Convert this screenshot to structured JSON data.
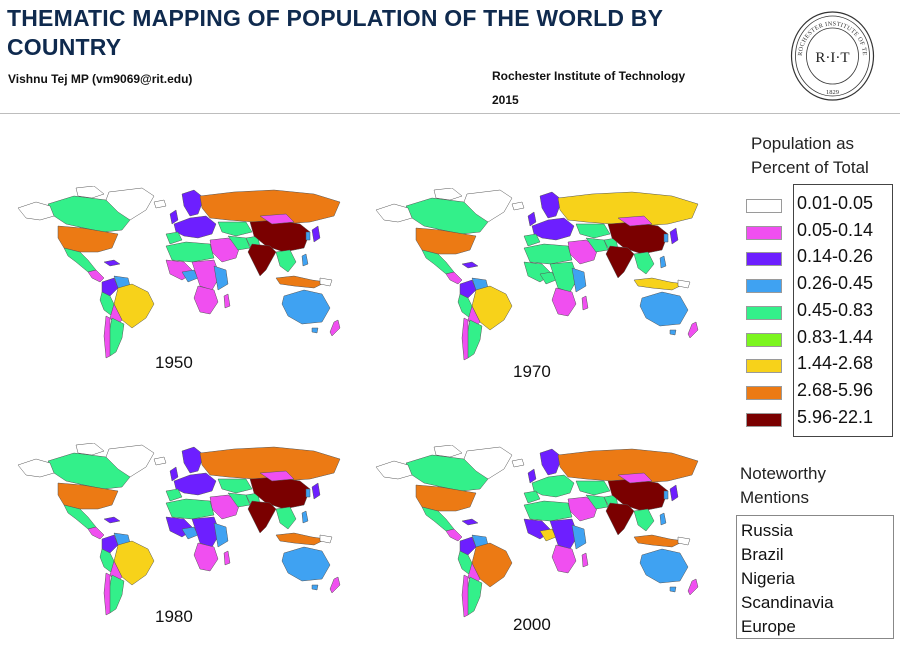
{
  "header": {
    "title": "THEMATIC MAPPING OF POPULATION OF THE WORLD BY COUNTRY",
    "author": "Vishnu Tej MP (vm9069@rit.edu)",
    "institution": "Rochester Institute of Technology",
    "year": "2015"
  },
  "seal": {
    "center_text": "R·I·T",
    "ring_text": "ROCHESTER INSTITUTE OF TECHNOLOGY",
    "founded": "1829"
  },
  "maps": [
    {
      "year": "1950",
      "russia": "#ec7a14",
      "china": "#7a0000",
      "india": "#7a0000",
      "usa": "#ec7a14",
      "brazil": "#f7d21a",
      "nigeria": "#3fa2f2",
      "europe": "#6d1fff",
      "africa": "#f04ff0",
      "indonesia": "#ec7a14"
    },
    {
      "year": "1970",
      "russia": "#f7d21a",
      "china": "#7a0000",
      "india": "#7a0000",
      "usa": "#ec7a14",
      "brazil": "#f7d21a",
      "nigeria": "#33f08a",
      "europe": "#6d1fff",
      "africa": "#33f08a",
      "indonesia": "#f7d21a"
    },
    {
      "year": "1980",
      "russia": "#ec7a14",
      "china": "#7a0000",
      "india": "#7a0000",
      "usa": "#ec7a14",
      "brazil": "#f7d21a",
      "nigeria": "#3fa2f2",
      "europe": "#6d1fff",
      "africa": "#6d1fff",
      "indonesia": "#ec7a14"
    },
    {
      "year": "2000",
      "russia": "#ec7a14",
      "china": "#7a0000",
      "india": "#7a0000",
      "usa": "#ec7a14",
      "brazil": "#ec7a14",
      "nigeria": "#f7d21a",
      "europe": "#33f08a",
      "africa": "#6d1fff",
      "indonesia": "#ec7a14"
    }
  ],
  "legend": {
    "title": "Population as Percent of Total",
    "classes": [
      {
        "label": "0.01-0.05",
        "color": "#ffffff"
      },
      {
        "label": "0.05-0.14",
        "color": "#f04ff0"
      },
      {
        "label": "0.14-0.26",
        "color": "#6d1fff"
      },
      {
        "label": "0.26-0.45",
        "color": "#3fa2f2"
      },
      {
        "label": "0.45-0.83",
        "color": "#33f08a"
      },
      {
        "label": "0.83-1.44",
        "color": "#7cf51f"
      },
      {
        "label": "1.44-2.68",
        "color": "#f7d21a"
      },
      {
        "label": "2.68-5.96",
        "color": "#ec7a14"
      },
      {
        "label": "5.96-22.1",
        "color": "#7a0000"
      }
    ]
  },
  "notes": {
    "title": "Noteworthy Mentions",
    "items": [
      "Russia",
      "Brazil",
      "Nigeria",
      "Scandinavia",
      "Europe"
    ]
  },
  "palette": {
    "land_white": "#ffffff",
    "land_pink": "#f04ff0",
    "land_purple": "#6d1fff",
    "land_blue": "#3fa2f2",
    "land_teal": "#33f08a",
    "land_green": "#7cf51f",
    "land_yellow": "#f7d21a",
    "land_orange": "#ec7a14",
    "land_maroon": "#7a0000",
    "border": "#555555"
  }
}
